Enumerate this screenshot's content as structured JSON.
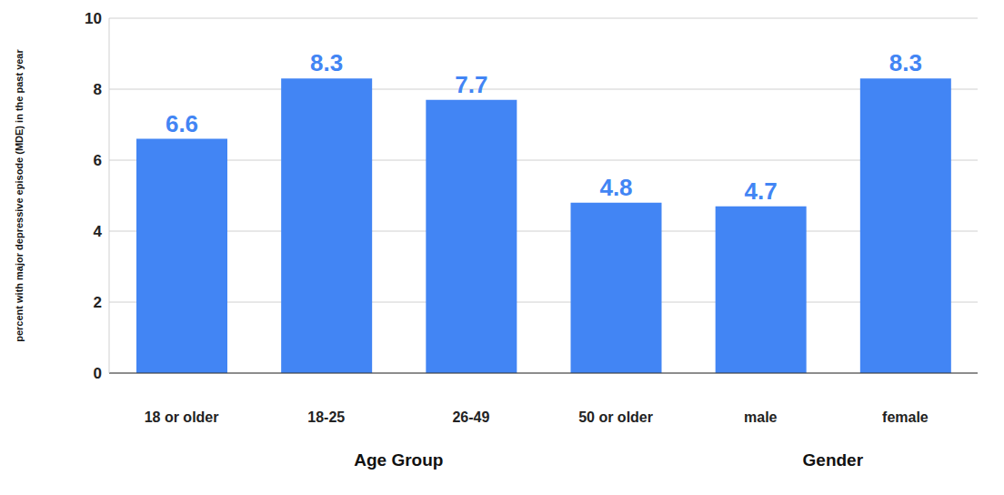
{
  "chart_data": {
    "type": "bar",
    "categories": [
      "18 or older",
      "18-25",
      "26-49",
      "50 or older",
      "male",
      "female"
    ],
    "values": [
      6.6,
      8.3,
      7.7,
      4.8,
      4.7,
      8.3
    ],
    "groups": [
      "Age Group",
      "Age Group",
      "Age Group",
      "Age Group",
      "Gender",
      "Gender"
    ],
    "y_label": "percent with major depressive episode (MDE) in the past year",
    "color": "#4285f4",
    "ylim": [
      0,
      10
    ],
    "yticks": [
      0,
      2,
      4,
      6,
      8,
      10
    ],
    "grid": true,
    "data_labels": true
  }
}
